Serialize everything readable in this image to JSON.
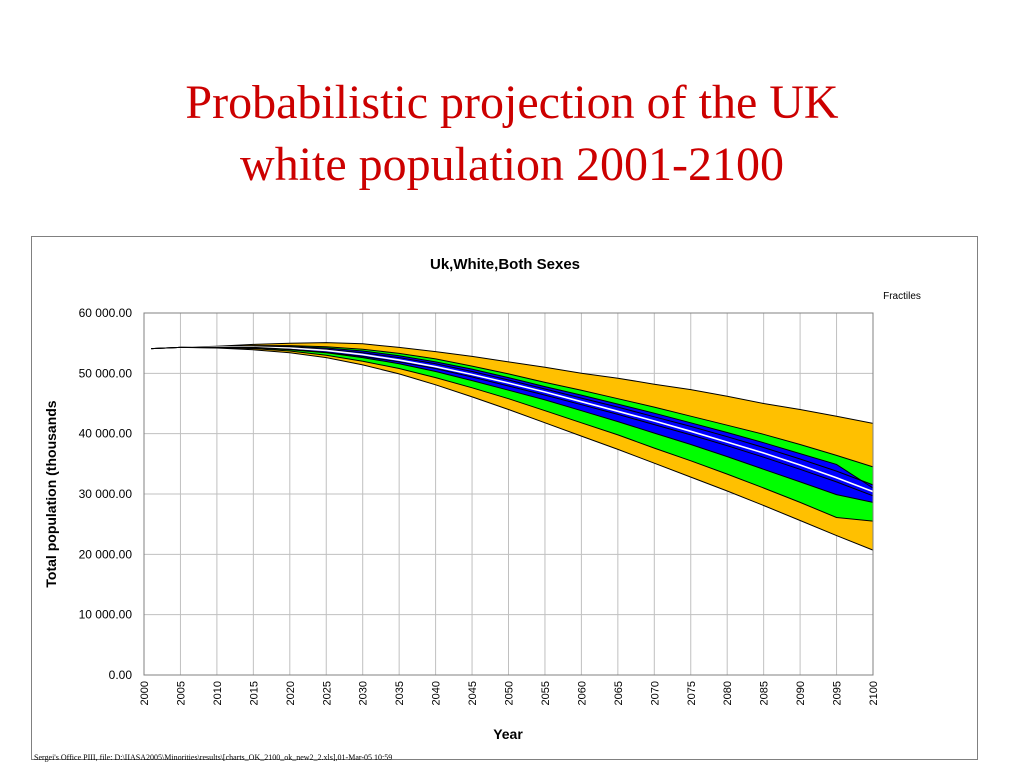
{
  "slide": {
    "title_line1": "Probabilistic projection of the UK",
    "title_line2": "white population 2001-2100",
    "footer": "Sergei's Office PIII, file: D:\\IIASA2005\\Minorities\\results\\[charts_OK_2100_ok_new2_2.xls],01-Mar-05    10:59"
  },
  "colors": {
    "title": "#cc0000",
    "band_outer": "#ffc000",
    "band_middle": "#00ff00",
    "band_inner": "#0000ff",
    "median": "#ffffff",
    "outline": "#000000",
    "grid": "#c0c0c0"
  },
  "chart_data": {
    "type": "area",
    "title": "Uk,White,Both Sexes",
    "legend_title": "Fractiles",
    "xlabel": "Year",
    "ylabel": "Total population (thousands",
    "x_ticks": [
      "2000",
      "2005",
      "2010",
      "2015",
      "2020",
      "2025",
      "2030",
      "2035",
      "2040",
      "2045",
      "2050",
      "2055",
      "2060",
      "2065",
      "2070",
      "2075",
      "2080",
      "2085",
      "2090",
      "2095",
      "2100"
    ],
    "y_ticks": [
      "0.00",
      "10 000.00",
      "20 000.00",
      "30 000.00",
      "40 000.00",
      "50 000.00",
      "60 000.00"
    ],
    "xlim": [
      2000,
      2100
    ],
    "ylim": [
      0,
      60000
    ],
    "grid": true,
    "x": [
      2001,
      2005,
      2010,
      2015,
      2020,
      2025,
      2030,
      2035,
      2040,
      2045,
      2050,
      2055,
      2060,
      2065,
      2070,
      2075,
      2080,
      2085,
      2090,
      2095,
      2100
    ],
    "series": [
      {
        "values": [
          54100,
          54300,
          54500,
          54800,
          55000,
          55100,
          54900,
          54300,
          53600,
          52800,
          51900,
          51000,
          50000,
          49200,
          48200,
          47300,
          46200,
          45000,
          44000,
          42900,
          41700
        ]
      },
      {
        "values": [
          54100,
          54300,
          54450,
          54600,
          54600,
          54400,
          54000,
          53300,
          52400,
          51200,
          49900,
          48500,
          47200,
          45800,
          44400,
          42900,
          41400,
          39900,
          38200,
          36400,
          34500
        ]
      },
      {
        "values": [
          54100,
          54300,
          54400,
          54500,
          54450,
          54200,
          53700,
          52900,
          51900,
          50700,
          49300,
          47800,
          46400,
          44900,
          43400,
          41800,
          40200,
          38500,
          36700,
          34900,
          31000
        ]
      },
      {
        "values": [
          54100,
          54300,
          54380,
          54400,
          54300,
          54000,
          53400,
          52600,
          51600,
          50300,
          48900,
          47400,
          45900,
          44400,
          42800,
          41200,
          39500,
          37700,
          35800,
          33800,
          31500
        ]
      },
      {
        "values": [
          54100,
          54300,
          54350,
          54350,
          54200,
          53800,
          53100,
          52200,
          51100,
          49800,
          48400,
          46900,
          45300,
          43700,
          42100,
          40400,
          38600,
          36800,
          34800,
          32700,
          30400
        ]
      },
      {
        "values": [
          54100,
          54300,
          54300,
          54300,
          54000,
          53500,
          52800,
          51900,
          50800,
          49400,
          47900,
          46400,
          44800,
          43200,
          41500,
          39800,
          38000,
          36100,
          34100,
          32000,
          29700
        ]
      },
      {
        "values": [
          54100,
          54300,
          54300,
          54200,
          53900,
          53400,
          52600,
          51600,
          50300,
          48800,
          47200,
          45600,
          43800,
          42000,
          40100,
          38200,
          36200,
          34100,
          32000,
          29900,
          28600
        ]
      },
      {
        "values": [
          54100,
          54300,
          54250,
          54100,
          53700,
          53000,
          52000,
          50800,
          49300,
          47600,
          45800,
          43800,
          41800,
          39800,
          37600,
          35500,
          33300,
          31000,
          28600,
          26100,
          25500
        ]
      },
      {
        "values": [
          54100,
          54300,
          54200,
          53900,
          53400,
          52600,
          51400,
          49900,
          48100,
          46100,
          44000,
          41800,
          39600,
          37400,
          35100,
          32800,
          30500,
          28100,
          25600,
          23100,
          20700
        ]
      }
    ]
  }
}
